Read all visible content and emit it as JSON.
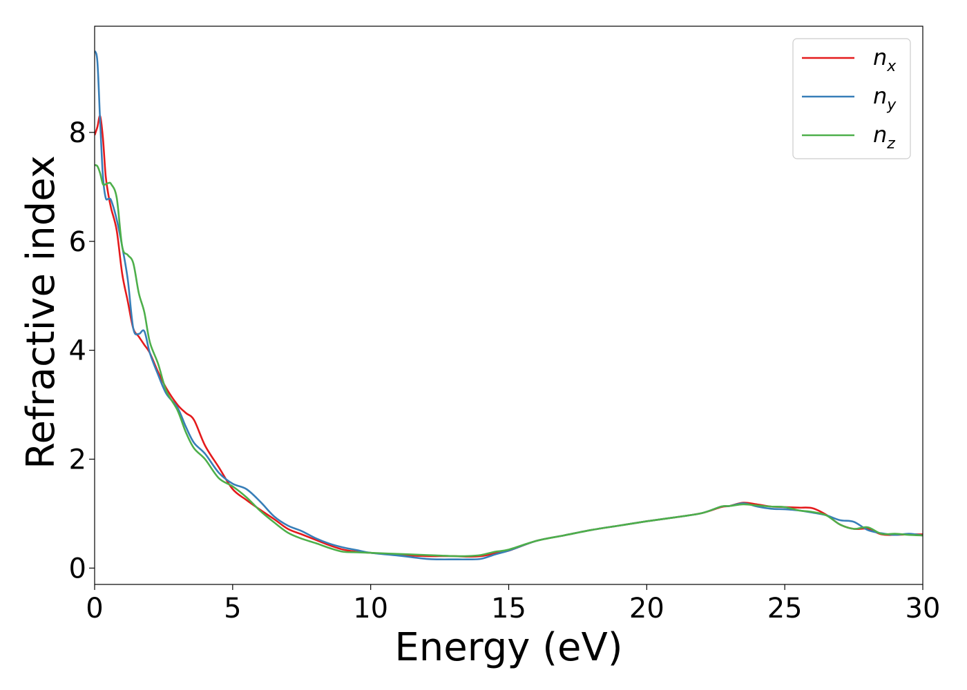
{
  "chart_data": {
    "type": "line",
    "title": "",
    "xlabel": "Energy (eV)",
    "ylabel": "Refractive index",
    "xlim": [
      0,
      30
    ],
    "ylim": [
      -0.3,
      9.95
    ],
    "xticks": [
      0,
      5,
      10,
      15,
      20,
      25,
      30
    ],
    "yticks": [
      0,
      2,
      4,
      6,
      8
    ],
    "grid": false,
    "legend_position": "top-right",
    "x": [
      0,
      0.1,
      0.2,
      0.3,
      0.4,
      0.5,
      0.6,
      0.8,
      1.0,
      1.2,
      1.4,
      1.6,
      1.8,
      2.0,
      2.3,
      2.6,
      3.0,
      3.3,
      3.6,
      4.0,
      4.5,
      5.0,
      5.5,
      6.0,
      6.5,
      7.0,
      7.5,
      8.0,
      8.5,
      9.0,
      9.5,
      10.0,
      11.0,
      12.0,
      12.5,
      13.0,
      13.5,
      14.0,
      14.5,
      15.0,
      16.0,
      17.0,
      18.0,
      19.0,
      20.0,
      21.0,
      22.0,
      22.7,
      23.0,
      23.5,
      24.0,
      24.5,
      25.0,
      25.5,
      26.0,
      26.5,
      27.0,
      27.5,
      28.0,
      28.5,
      29.0,
      29.5,
      30.0
    ],
    "series": [
      {
        "name": "n_x",
        "label_main": "n",
        "label_sub": "x",
        "color": "#e41a1c",
        "values": [
          7.95,
          8.1,
          8.3,
          7.9,
          7.2,
          6.85,
          6.6,
          6.2,
          5.4,
          4.9,
          4.4,
          4.25,
          4.1,
          3.95,
          3.6,
          3.3,
          3.0,
          2.85,
          2.72,
          2.25,
          1.85,
          1.45,
          1.25,
          1.07,
          0.9,
          0.72,
          0.62,
          0.52,
          0.42,
          0.34,
          0.3,
          0.28,
          0.24,
          0.22,
          0.22,
          0.22,
          0.21,
          0.22,
          0.27,
          0.32,
          0.5,
          0.6,
          0.7,
          0.78,
          0.86,
          0.93,
          1.01,
          1.12,
          1.14,
          1.2,
          1.17,
          1.13,
          1.12,
          1.11,
          1.1,
          0.98,
          0.8,
          0.72,
          0.72,
          0.62,
          0.61,
          0.62,
          0.62
        ]
      },
      {
        "name": "n_y",
        "label_main": "n",
        "label_sub": "y",
        "color": "#377eb8",
        "values": [
          9.5,
          9.3,
          8.2,
          7.2,
          6.8,
          6.78,
          6.75,
          6.4,
          5.9,
          5.3,
          4.4,
          4.3,
          4.35,
          3.95,
          3.55,
          3.2,
          2.95,
          2.6,
          2.3,
          2.1,
          1.75,
          1.55,
          1.45,
          1.22,
          0.95,
          0.78,
          0.68,
          0.55,
          0.45,
          0.38,
          0.33,
          0.28,
          0.23,
          0.17,
          0.16,
          0.16,
          0.16,
          0.17,
          0.25,
          0.32,
          0.5,
          0.6,
          0.7,
          0.78,
          0.86,
          0.93,
          1.01,
          1.13,
          1.14,
          1.19,
          1.13,
          1.09,
          1.08,
          1.06,
          1.02,
          0.97,
          0.88,
          0.85,
          0.7,
          0.64,
          0.61,
          0.63,
          0.6
        ]
      },
      {
        "name": "n_z",
        "label_main": "n",
        "label_sub": "z",
        "color": "#4daf4a",
        "values": [
          7.4,
          7.38,
          7.25,
          7.05,
          7.05,
          7.07,
          7.05,
          6.8,
          5.9,
          5.75,
          5.6,
          5.05,
          4.7,
          4.15,
          3.75,
          3.25,
          2.9,
          2.5,
          2.2,
          2.0,
          1.65,
          1.5,
          1.3,
          1.05,
          0.84,
          0.65,
          0.54,
          0.46,
          0.37,
          0.3,
          0.29,
          0.28,
          0.26,
          0.24,
          0.23,
          0.22,
          0.22,
          0.24,
          0.3,
          0.34,
          0.5,
          0.6,
          0.7,
          0.78,
          0.86,
          0.93,
          1.01,
          1.13,
          1.14,
          1.17,
          1.15,
          1.13,
          1.12,
          1.06,
          1.03,
          0.97,
          0.8,
          0.72,
          0.75,
          0.63,
          0.63,
          0.61,
          0.6
        ]
      }
    ]
  }
}
